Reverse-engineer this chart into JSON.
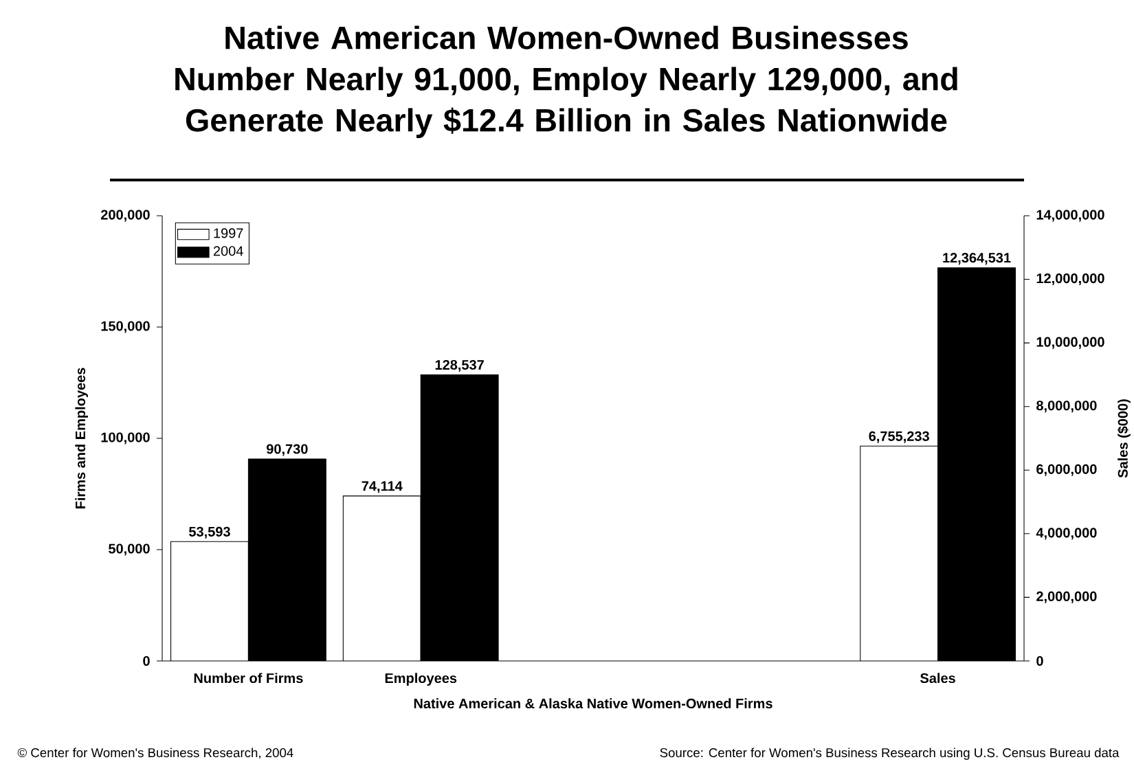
{
  "chart_data": {
    "type": "bar",
    "title": "Native American Women-Owned Businesses Number Nearly 91,000, Employ Nearly 129,000, and Generate Nearly $12.4 Billion in Sales Nationwide",
    "xlabel": "Native American & Alaska Native Women-Owned Firms",
    "ylabel": "Firms and Employees",
    "y2label": "Sales ($000)",
    "categories": [
      "Number of Firms",
      "Employees",
      null,
      null,
      "Sales"
    ],
    "series": [
      {
        "name": "1997",
        "color": "#ffffff",
        "values": [
          53593,
          74114,
          null,
          null,
          null
        ],
        "value_labels": [
          "53,593",
          "74,114",
          null,
          null,
          null
        ]
      },
      {
        "name": "2004",
        "color": "#000000",
        "values": [
          90730,
          128537,
          null,
          null,
          null
        ],
        "value_labels": [
          "90,730",
          "128,537",
          null,
          null,
          null
        ]
      },
      {
        "color": "#ffffff",
        "axis": "y2",
        "values": [
          null,
          null,
          null,
          null,
          6755233
        ],
        "value_labels": [
          null,
          null,
          null,
          null,
          "6,755,233"
        ]
      },
      {
        "color": "#000000",
        "axis": "y2",
        "values": [
          null,
          null,
          null,
          null,
          12364531
        ],
        "value_labels": [
          null,
          null,
          null,
          null,
          "12,364,531"
        ]
      }
    ],
    "ylim": [
      0,
      200000
    ],
    "yticks": [
      0,
      {
        "value": 50000,
        "label": "50,000"
      },
      {
        "value": 100000,
        "label": "100,000"
      },
      {
        "value": 150000,
        "label": "150,000"
      },
      {
        "value": 200000,
        "label": "200,000"
      }
    ],
    "y2lim": [
      0,
      14000000
    ],
    "y2ticks": [
      0,
      {
        "value": 2000000,
        "label": "2,000,000"
      },
      {
        "value": 4000000,
        "label": "4,000,000"
      },
      {
        "value": 6000000,
        "label": "6,000,000"
      },
      {
        "value": 8000000,
        "label": "8,000,000"
      },
      {
        "value": 10000000,
        "label": "10,000,000"
      },
      {
        "value": 12000000,
        "label": "12,000,000"
      },
      {
        "value": 14000000,
        "label": "14,000,000"
      }
    ],
    "legend": "top left",
    "annotations": [
      "© Center for Women's Business Research, 2004",
      "Source: Center for Women's Business Research using U.S. Census Bureau data"
    ]
  }
}
